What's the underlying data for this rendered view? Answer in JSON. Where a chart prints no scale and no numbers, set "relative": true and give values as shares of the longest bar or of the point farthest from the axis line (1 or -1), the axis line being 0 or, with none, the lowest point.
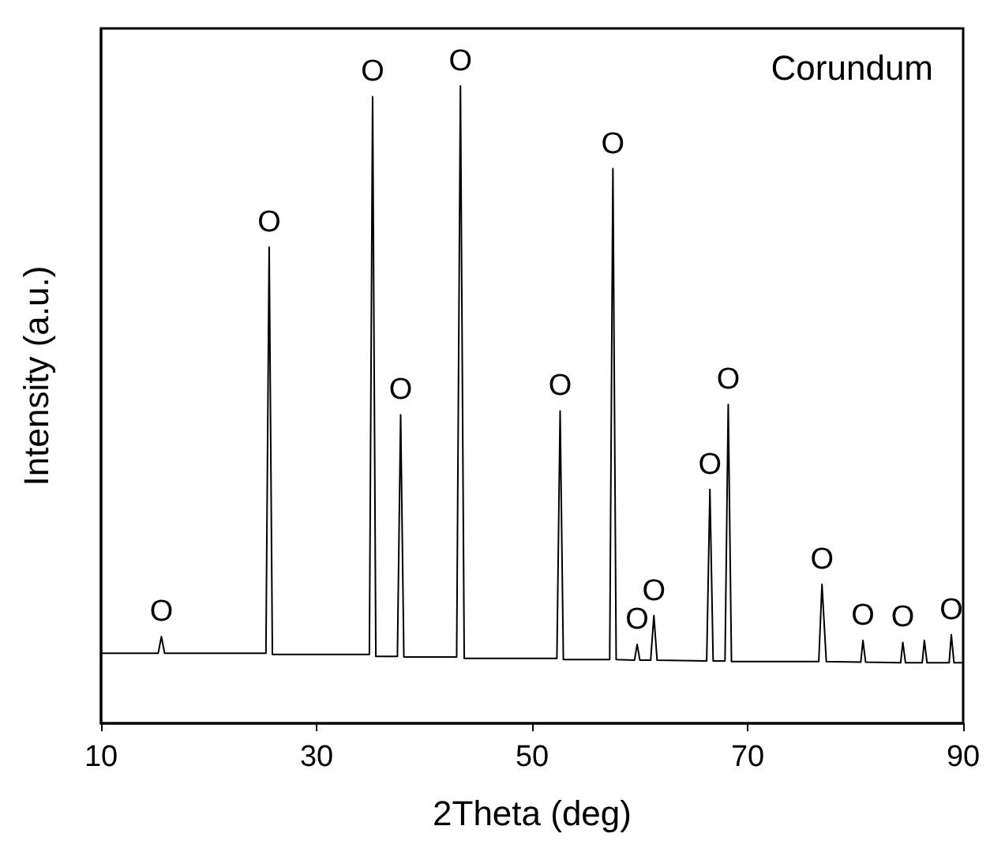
{
  "chart_data": {
    "type": "line",
    "xlabel": "2Theta (deg)",
    "ylabel": "Intensity (a.u.)",
    "relative": true,
    "color": "#000000",
    "xlim": [
      10,
      90
    ],
    "xticks": [
      10,
      30,
      50,
      70,
      90
    ],
    "x": [
      10,
      15.3,
      15.6,
      15.9,
      25.3,
      25.6,
      25.9,
      34.9,
      35.2,
      35.5,
      37.5,
      37.8,
      38.1,
      43.0,
      43.35,
      43.7,
      52.3,
      52.6,
      52.9,
      57.2,
      57.5,
      57.8,
      59.5,
      59.75,
      60.0,
      61.0,
      61.3,
      61.6,
      66.2,
      66.5,
      66.8,
      67.9,
      68.2,
      68.5,
      76.6,
      76.9,
      77.3,
      80.5,
      80.7,
      80.95,
      84.2,
      84.4,
      84.65,
      86.2,
      86.4,
      86.65,
      88.7,
      88.9,
      89.15,
      90
    ],
    "values": [
      0.11,
      0.11,
      0.136,
      0.11,
      0.11,
      0.747,
      0.108,
      0.108,
      0.983,
      0.105,
      0.105,
      0.484,
      0.104,
      0.104,
      1.0,
      0.102,
      0.102,
      0.49,
      0.1,
      0.1,
      0.87,
      0.1,
      0.099,
      0.124,
      0.099,
      0.099,
      0.169,
      0.099,
      0.098,
      0.367,
      0.098,
      0.098,
      0.5,
      0.097,
      0.097,
      0.218,
      0.097,
      0.096,
      0.13,
      0.096,
      0.095,
      0.127,
      0.095,
      0.095,
      0.13,
      0.095,
      0.095,
      0.139,
      0.095,
      0.095
    ],
    "annotations": [
      "Corundum",
      {
        "text": "O",
        "x": 15.6,
        "y": 0.136
      },
      {
        "text": "O",
        "x": 25.6,
        "y": 0.747
      },
      {
        "text": "O",
        "x": 35.2,
        "y": 0.983
      },
      {
        "text": "O",
        "x": 37.8,
        "y": 0.484
      },
      {
        "text": "O",
        "x": 43.35,
        "y": 1.0
      },
      {
        "text": "O",
        "x": 52.6,
        "y": 0.49
      },
      {
        "text": "O",
        "x": 57.5,
        "y": 0.87
      },
      {
        "text": "O",
        "x": 59.75,
        "y": 0.124
      },
      {
        "text": "O",
        "x": 61.3,
        "y": 0.169
      },
      {
        "text": "O",
        "x": 66.5,
        "y": 0.367
      },
      {
        "text": "O",
        "x": 68.2,
        "y": 0.5
      },
      {
        "text": "O",
        "x": 76.9,
        "y": 0.218
      },
      {
        "text": "O",
        "x": 80.7,
        "y": 0.13
      },
      {
        "text": "O",
        "x": 84.4,
        "y": 0.127
      },
      {
        "text": "O",
        "x": 88.9,
        "y": 0.139
      }
    ]
  }
}
